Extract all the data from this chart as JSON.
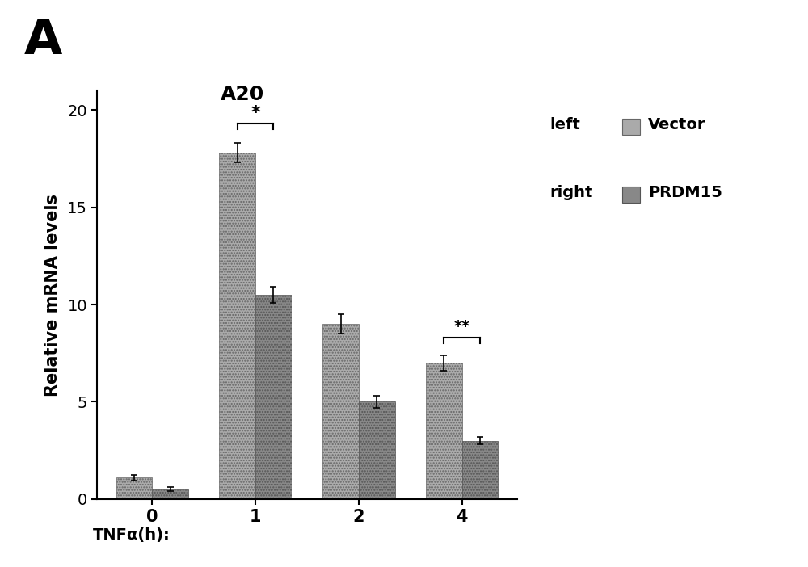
{
  "title_label": "A",
  "chart_title": "A20",
  "ylabel": "Relative mRNA levels",
  "xlabel": "TNFα(h):",
  "x_categories": [
    "0",
    "1",
    "2",
    "4"
  ],
  "vector_values": [
    1.1,
    17.8,
    9.0,
    7.0
  ],
  "prdm15_values": [
    0.5,
    10.5,
    5.0,
    3.0
  ],
  "vector_errors": [
    0.15,
    0.5,
    0.5,
    0.4
  ],
  "prdm15_errors": [
    0.1,
    0.4,
    0.3,
    0.2
  ],
  "bar_color_vector": "#aaaaaa",
  "bar_color_prdm15": "#888888",
  "ylim": [
    0,
    21
  ],
  "yticks": [
    0,
    5,
    10,
    15,
    20
  ],
  "bar_width": 0.35,
  "legend_left_text": "left",
  "legend_right_text": "right",
  "legend_vector_label": "Vector",
  "legend_prdm15_label": "PRDM15",
  "significance_1": "*",
  "significance_4": "**",
  "background_color": "#ffffff",
  "fig_width": 10.0,
  "fig_height": 7.02
}
